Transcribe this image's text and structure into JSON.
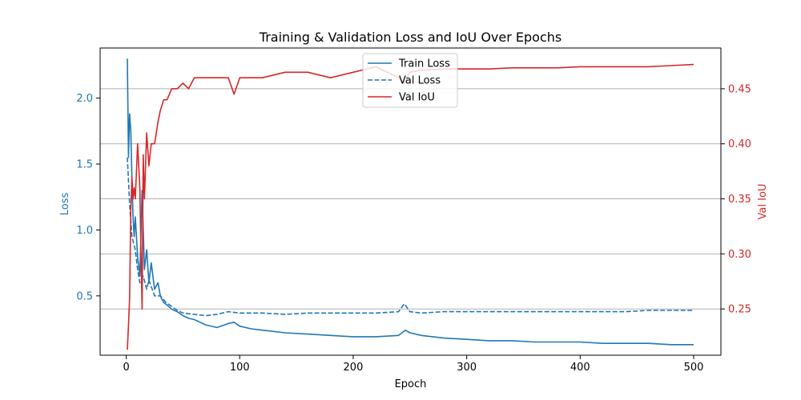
{
  "chart_data": {
    "type": "line",
    "title": "Training & Validation Loss and IoU Over Epochs",
    "xlabel": "Epoch",
    "ylabel_left": "Loss",
    "ylabel_right": "Val IoU",
    "xlim": [
      -23,
      524
    ],
    "ylim_left": [
      0.05,
      2.38
    ],
    "ylim_right": [
      0.208,
      0.487
    ],
    "x_ticks": [
      0,
      100,
      200,
      300,
      400,
      500
    ],
    "x_tick_labels": [
      "0",
      "100",
      "200",
      "300",
      "400",
      "500"
    ],
    "y_left_ticks": [
      0.5,
      1.0,
      1.5,
      2.0
    ],
    "y_left_tick_labels": [
      "0.5",
      "1.0",
      "1.5",
      "2.0"
    ],
    "y_right_ticks": [
      0.25,
      0.3,
      0.35,
      0.4,
      0.45
    ],
    "y_right_tick_labels": [
      "0.25",
      "0.30",
      "0.35",
      "0.40",
      "0.45"
    ],
    "grid": "horizontal lines at right-axis ticks",
    "legend_placement": "upper center",
    "colors": {
      "loss": "#1f77b4",
      "iou": "#d62728"
    },
    "series": [
      {
        "name": "Train Loss",
        "axis": "left",
        "style": "solid",
        "color": "#1f77b4",
        "x": [
          1,
          2,
          3,
          4,
          5,
          6,
          7,
          8,
          10,
          12,
          14,
          16,
          18,
          20,
          22,
          25,
          28,
          30,
          33,
          36,
          40,
          45,
          50,
          55,
          60,
          70,
          80,
          90,
          95,
          100,
          110,
          120,
          140,
          160,
          180,
          200,
          220,
          240,
          246,
          250,
          260,
          280,
          300,
          320,
          340,
          360,
          380,
          400,
          420,
          440,
          460,
          480,
          500
        ],
        "y": [
          2.3,
          1.55,
          1.88,
          1.75,
          1.4,
          1.1,
          0.95,
          1.1,
          0.8,
          0.65,
          1.3,
          0.7,
          0.85,
          0.6,
          0.75,
          0.55,
          0.6,
          0.5,
          0.45,
          0.43,
          0.4,
          0.38,
          0.35,
          0.33,
          0.32,
          0.28,
          0.26,
          0.29,
          0.3,
          0.27,
          0.25,
          0.24,
          0.22,
          0.21,
          0.2,
          0.19,
          0.19,
          0.2,
          0.24,
          0.22,
          0.2,
          0.18,
          0.17,
          0.16,
          0.16,
          0.15,
          0.15,
          0.15,
          0.14,
          0.14,
          0.14,
          0.13,
          0.13
        ]
      },
      {
        "name": "Val Loss",
        "axis": "left",
        "style": "dashed",
        "color": "#1f77b4",
        "x": [
          1,
          3,
          5,
          8,
          10,
          12,
          15,
          18,
          20,
          25,
          30,
          35,
          40,
          45,
          50,
          60,
          70,
          80,
          90,
          100,
          120,
          140,
          160,
          180,
          200,
          220,
          240,
          245,
          250,
          260,
          280,
          300,
          320,
          340,
          360,
          380,
          400,
          420,
          440,
          460,
          480,
          500
        ],
        "y": [
          1.55,
          1.2,
          0.95,
          0.85,
          0.7,
          0.6,
          0.65,
          0.55,
          0.62,
          0.5,
          0.5,
          0.45,
          0.42,
          0.39,
          0.37,
          0.36,
          0.35,
          0.36,
          0.38,
          0.37,
          0.37,
          0.36,
          0.37,
          0.37,
          0.37,
          0.37,
          0.38,
          0.44,
          0.38,
          0.37,
          0.38,
          0.38,
          0.38,
          0.38,
          0.38,
          0.38,
          0.38,
          0.38,
          0.38,
          0.39,
          0.39,
          0.39
        ]
      },
      {
        "name": "Val IoU",
        "axis": "right",
        "style": "solid",
        "color": "#d62728",
        "x": [
          1,
          2,
          3,
          4,
          5,
          6,
          7,
          8,
          10,
          12,
          13,
          14,
          15,
          16,
          18,
          20,
          22,
          25,
          28,
          30,
          33,
          36,
          40,
          45,
          50,
          55,
          60,
          65,
          70,
          80,
          90,
          95,
          100,
          110,
          120,
          140,
          160,
          180,
          200,
          220,
          240,
          245,
          250,
          260,
          280,
          300,
          320,
          340,
          360,
          380,
          400,
          420,
          440,
          460,
          480,
          500
        ],
        "y": [
          0.213,
          0.235,
          0.26,
          0.34,
          0.37,
          0.35,
          0.36,
          0.35,
          0.4,
          0.36,
          0.3,
          0.25,
          0.39,
          0.35,
          0.41,
          0.38,
          0.4,
          0.4,
          0.42,
          0.43,
          0.44,
          0.44,
          0.45,
          0.45,
          0.455,
          0.45,
          0.46,
          0.46,
          0.46,
          0.46,
          0.46,
          0.445,
          0.46,
          0.46,
          0.46,
          0.465,
          0.465,
          0.46,
          0.465,
          0.47,
          0.46,
          0.455,
          0.465,
          0.467,
          0.468,
          0.468,
          0.468,
          0.469,
          0.469,
          0.469,
          0.47,
          0.47,
          0.47,
          0.47,
          0.471,
          0.472
        ]
      }
    ]
  }
}
